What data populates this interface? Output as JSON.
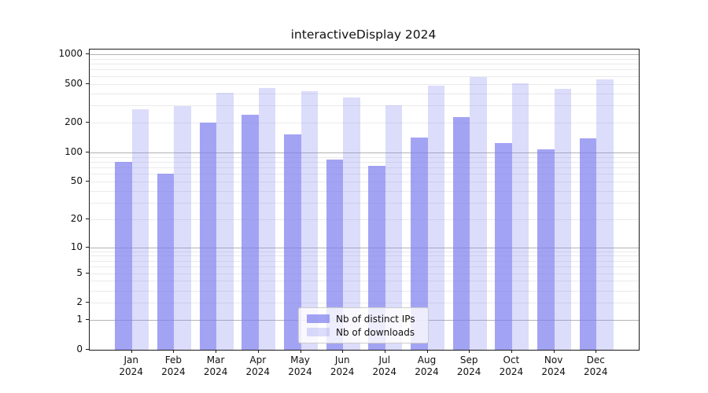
{
  "title": "interactiveDisplay 2024",
  "chart_data": {
    "type": "bar",
    "title": "interactiveDisplay 2024",
    "categories": [
      "Jan",
      "Feb",
      "Mar",
      "Apr",
      "May",
      "Jun",
      "Jul",
      "Aug",
      "Sep",
      "Oct",
      "Nov",
      "Dec"
    ],
    "year_label": "2024",
    "series": [
      {
        "name": "Nb of distinct IPs",
        "values": [
          80,
          60,
          200,
          240,
          152,
          85,
          73,
          142,
          230,
          124,
          107,
          139
        ]
      },
      {
        "name": "Nb of downloads",
        "values": [
          278,
          295,
          405,
          450,
          420,
          360,
          303,
          475,
          585,
          505,
          445,
          550
        ]
      }
    ],
    "yscale": "log(1+v)",
    "yticks": [
      0,
      1,
      2,
      5,
      10,
      20,
      50,
      100,
      200,
      500,
      1000
    ],
    "ytick_major": [
      1,
      10,
      100,
      1000
    ],
    "ylim": [
      0,
      1115
    ],
    "xlim": [
      -1,
      12
    ],
    "bar_width_units": 0.4,
    "grid": "on",
    "legend_position": "lower center",
    "xlabel": "",
    "ylabel": ""
  },
  "colors": {
    "bar_base": "#8080f0",
    "bar_alpha_ips": 0.72,
    "bar_alpha_downloads": 0.28,
    "grid_major": "#b3b3b3",
    "grid_minor": "#eaeaea",
    "axis": "#1a1a1a"
  },
  "legend": {
    "items": [
      {
        "label": "Nb of distinct IPs",
        "swatch": "ips-swatch"
      },
      {
        "label": "Nb of downloads",
        "swatch": "downloads-swatch"
      }
    ]
  }
}
